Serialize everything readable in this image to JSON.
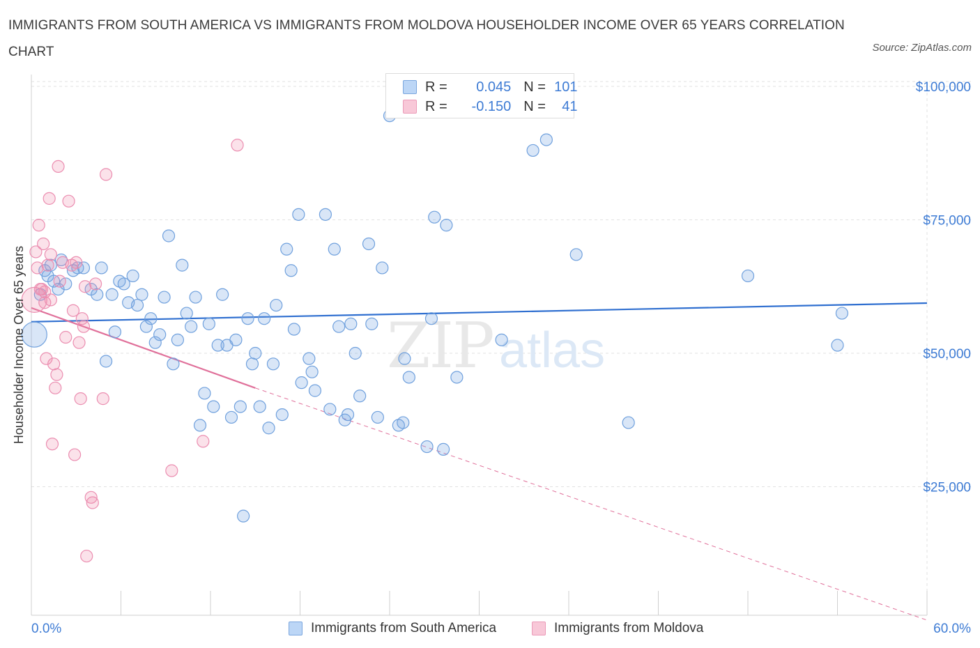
{
  "title": "IMMIGRANTS FROM SOUTH AMERICA VS IMMIGRANTS FROM MOLDOVA HOUSEHOLDER INCOME OVER 65 YEARS CORRELATION CHART",
  "source": "Source: ZipAtlas.com",
  "watermark": {
    "zip": "ZIP",
    "atlas": "atlas"
  },
  "legend": {
    "rows": [
      {
        "r_label": "R =",
        "r_value": "0.045",
        "n_label": "N =",
        "n_value": "101",
        "color": "#a8c8f0"
      },
      {
        "r_label": "R =",
        "r_value": "-0.150",
        "n_label": "N =",
        "n_value": "41",
        "color": "#f5b8cc"
      }
    ]
  },
  "bottom_legend": [
    "Immigrants from South America",
    "Immigrants from Moldova"
  ],
  "colors": {
    "blue_fill": "rgba(120,165,225,0.28)",
    "blue_stroke": "#6fa0dd",
    "blue_line": "#2f6fd0",
    "pink_fill": "rgba(240,140,170,0.25)",
    "pink_stroke": "#eb8db0",
    "pink_line": "#e0709a",
    "axis_label": "#3d7bd4",
    "grid": "#e2e2e2"
  },
  "chart_data": {
    "type": "scatter",
    "title": "IMMIGRANTS FROM SOUTH AMERICA VS IMMIGRANTS FROM MOLDOVA HOUSEHOLDER INCOME OVER 65 YEARS CORRELATION CHART",
    "xlabel": "",
    "ylabel": "Householder Income Over 65 years",
    "xlim": [
      0,
      60
    ],
    "ylim": [
      0,
      100000
    ],
    "x_tick_labels": [
      "0.0%",
      "60.0%"
    ],
    "y_ticks": [
      25000,
      50000,
      75000,
      100000
    ],
    "y_tick_labels": [
      "$25,000",
      "$50,000",
      "$75,000",
      "$100,000"
    ],
    "grid": true,
    "legend_placement": "top-center",
    "series": [
      {
        "name": "Immigrants from South America",
        "trend": {
          "x": [
            0,
            60
          ],
          "y": [
            55900,
            59400
          ]
        },
        "points": [
          {
            "x": 0.2,
            "y": 53500,
            "big": true
          },
          {
            "x": 0.6,
            "y": 61000
          },
          {
            "x": 0.9,
            "y": 65500
          },
          {
            "x": 1.1,
            "y": 64500
          },
          {
            "x": 1.3,
            "y": 66500
          },
          {
            "x": 1.5,
            "y": 63500
          },
          {
            "x": 1.8,
            "y": 62000
          },
          {
            "x": 2.0,
            "y": 67500
          },
          {
            "x": 2.3,
            "y": 63000
          },
          {
            "x": 2.8,
            "y": 65500
          },
          {
            "x": 3.1,
            "y": 66000
          },
          {
            "x": 3.5,
            "y": 66000
          },
          {
            "x": 4.0,
            "y": 62000
          },
          {
            "x": 4.4,
            "y": 61000
          },
          {
            "x": 4.7,
            "y": 66000
          },
          {
            "x": 5.0,
            "y": 48500
          },
          {
            "x": 5.4,
            "y": 61000
          },
          {
            "x": 5.6,
            "y": 54000
          },
          {
            "x": 5.9,
            "y": 63500
          },
          {
            "x": 6.2,
            "y": 63000
          },
          {
            "x": 6.5,
            "y": 59500
          },
          {
            "x": 6.8,
            "y": 64500
          },
          {
            "x": 7.1,
            "y": 59000
          },
          {
            "x": 7.4,
            "y": 61000
          },
          {
            "x": 7.7,
            "y": 55000
          },
          {
            "x": 8.0,
            "y": 56500
          },
          {
            "x": 8.3,
            "y": 52000
          },
          {
            "x": 8.6,
            "y": 53500
          },
          {
            "x": 8.9,
            "y": 60500
          },
          {
            "x": 9.2,
            "y": 72000
          },
          {
            "x": 9.5,
            "y": 48000
          },
          {
            "x": 9.8,
            "y": 52500
          },
          {
            "x": 10.1,
            "y": 66500
          },
          {
            "x": 10.4,
            "y": 57500
          },
          {
            "x": 10.7,
            "y": 55000
          },
          {
            "x": 11.0,
            "y": 60500
          },
          {
            "x": 11.3,
            "y": 36500
          },
          {
            "x": 11.6,
            "y": 42500
          },
          {
            "x": 11.9,
            "y": 55500
          },
          {
            "x": 12.2,
            "y": 40000
          },
          {
            "x": 12.5,
            "y": 51500
          },
          {
            "x": 12.8,
            "y": 61000
          },
          {
            "x": 13.1,
            "y": 51500
          },
          {
            "x": 13.4,
            "y": 38000
          },
          {
            "x": 13.7,
            "y": 52500
          },
          {
            "x": 14.0,
            "y": 40000
          },
          {
            "x": 14.2,
            "y": 19500
          },
          {
            "x": 14.5,
            "y": 56500
          },
          {
            "x": 14.8,
            "y": 48000
          },
          {
            "x": 15.0,
            "y": 50000
          },
          {
            "x": 15.3,
            "y": 40000
          },
          {
            "x": 15.6,
            "y": 56500
          },
          {
            "x": 15.9,
            "y": 36000
          },
          {
            "x": 16.2,
            "y": 48000
          },
          {
            "x": 16.4,
            "y": 59000
          },
          {
            "x": 16.8,
            "y": 38500
          },
          {
            "x": 17.1,
            "y": 69500
          },
          {
            "x": 17.4,
            "y": 65500
          },
          {
            "x": 17.6,
            "y": 54500
          },
          {
            "x": 17.9,
            "y": 76000
          },
          {
            "x": 18.1,
            "y": 44500
          },
          {
            "x": 18.6,
            "y": 49000
          },
          {
            "x": 18.8,
            "y": 46500
          },
          {
            "x": 19.0,
            "y": 43000
          },
          {
            "x": 19.7,
            "y": 76000
          },
          {
            "x": 20.0,
            "y": 39500
          },
          {
            "x": 20.3,
            "y": 69500
          },
          {
            "x": 20.6,
            "y": 55000
          },
          {
            "x": 21.0,
            "y": 37500
          },
          {
            "x": 21.2,
            "y": 38500
          },
          {
            "x": 21.4,
            "y": 55500
          },
          {
            "x": 21.7,
            "y": 50000
          },
          {
            "x": 22.0,
            "y": 42000
          },
          {
            "x": 22.6,
            "y": 70500
          },
          {
            "x": 22.8,
            "y": 55500
          },
          {
            "x": 23.2,
            "y": 38000
          },
          {
            "x": 23.5,
            "y": 66000
          },
          {
            "x": 24.0,
            "y": 94500
          },
          {
            "x": 24.6,
            "y": 36500
          },
          {
            "x": 24.9,
            "y": 37000
          },
          {
            "x": 25.0,
            "y": 49000
          },
          {
            "x": 25.3,
            "y": 45500
          },
          {
            "x": 26.5,
            "y": 32500
          },
          {
            "x": 26.8,
            "y": 56500
          },
          {
            "x": 27.0,
            "y": 75500
          },
          {
            "x": 27.6,
            "y": 32000
          },
          {
            "x": 27.8,
            "y": 74000
          },
          {
            "x": 28.5,
            "y": 45500
          },
          {
            "x": 31.5,
            "y": 52500
          },
          {
            "x": 33.0,
            "y": 96500
          },
          {
            "x": 33.6,
            "y": 88000
          },
          {
            "x": 34.5,
            "y": 90000
          },
          {
            "x": 36.5,
            "y": 68500
          },
          {
            "x": 40.0,
            "y": 37000
          },
          {
            "x": 48.0,
            "y": 64500
          },
          {
            "x": 54.0,
            "y": 51500
          },
          {
            "x": 54.3,
            "y": 57500
          }
        ]
      },
      {
        "name": "Immigrants from Moldova",
        "trend": {
          "x": [
            0,
            15
          ],
          "y": [
            58500,
            43500
          ],
          "dashed_to": {
            "x": 60,
            "y": 0
          }
        },
        "points": [
          {
            "x": 0.2,
            "y": 60000,
            "big": true
          },
          {
            "x": 0.3,
            "y": 69000
          },
          {
            "x": 0.4,
            "y": 66000
          },
          {
            "x": 0.5,
            "y": 74000
          },
          {
            "x": 0.6,
            "y": 62000
          },
          {
            "x": 0.8,
            "y": 70500
          },
          {
            "x": 0.9,
            "y": 61500
          },
          {
            "x": 0.9,
            "y": 59500
          },
          {
            "x": 1.0,
            "y": 49000
          },
          {
            "x": 1.2,
            "y": 79000
          },
          {
            "x": 1.3,
            "y": 68500
          },
          {
            "x": 1.3,
            "y": 60000
          },
          {
            "x": 1.4,
            "y": 33000
          },
          {
            "x": 1.5,
            "y": 48000
          },
          {
            "x": 1.6,
            "y": 43500
          },
          {
            "x": 1.7,
            "y": 46000
          },
          {
            "x": 1.8,
            "y": 85000
          },
          {
            "x": 1.9,
            "y": 63500
          },
          {
            "x": 2.1,
            "y": 67000
          },
          {
            "x": 2.3,
            "y": 53000
          },
          {
            "x": 2.5,
            "y": 78500
          },
          {
            "x": 2.7,
            "y": 66500
          },
          {
            "x": 2.8,
            "y": 58000
          },
          {
            "x": 2.9,
            "y": 31000
          },
          {
            "x": 3.0,
            "y": 67000
          },
          {
            "x": 3.2,
            "y": 52000
          },
          {
            "x": 3.3,
            "y": 41500
          },
          {
            "x": 3.4,
            "y": 56500
          },
          {
            "x": 3.5,
            "y": 55000
          },
          {
            "x": 3.6,
            "y": 62500
          },
          {
            "x": 3.7,
            "y": 12000
          },
          {
            "x": 4.0,
            "y": 23000
          },
          {
            "x": 4.1,
            "y": 22000
          },
          {
            "x": 4.3,
            "y": 63000
          },
          {
            "x": 4.8,
            "y": 41500
          },
          {
            "x": 5.0,
            "y": 83500
          },
          {
            "x": 9.4,
            "y": 28000
          },
          {
            "x": 11.5,
            "y": 33500
          },
          {
            "x": 13.8,
            "y": 89000
          },
          {
            "x": 0.7,
            "y": 62000
          },
          {
            "x": 1.1,
            "y": 66500
          }
        ]
      }
    ]
  }
}
